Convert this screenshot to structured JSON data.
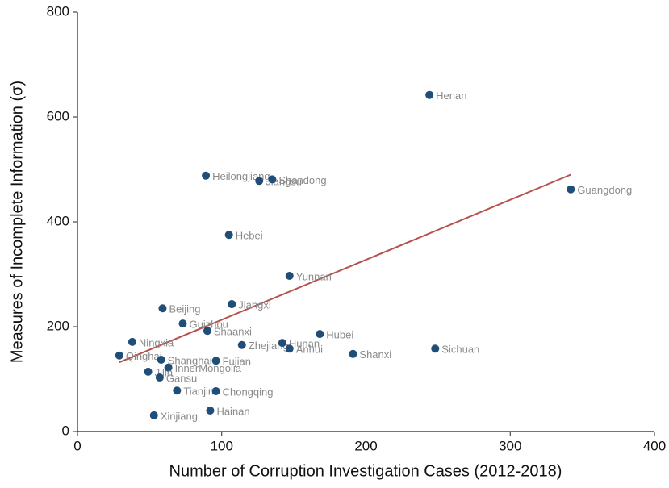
{
  "chart_data": {
    "type": "scatter",
    "xlabel": "Number of Corruption Investigation Cases (2012-2018)",
    "ylabel": "Measures of Incomplete Information (σ)",
    "xlim": [
      0,
      400
    ],
    "xticks": [
      0,
      100,
      200,
      300,
      400
    ],
    "ylim": [
      0,
      800
    ],
    "yticks": [
      0,
      200,
      400,
      600,
      800
    ],
    "color": "#1f4e79",
    "labels": [
      "Henan",
      "Guangdong",
      "Heilongjiang",
      "Jiangsu",
      "Shandong",
      "Hebei",
      "Yunnan",
      "Beijing",
      "Jiangxi",
      "Guizhou",
      "Shaanxi",
      "Ningxia",
      "Hubei",
      "Zhejiang",
      "Hunan",
      "Anhui",
      "Shanxi",
      "Sichuan",
      "Qinghai",
      "Shanghai",
      "Fujian",
      "InnerMongolia",
      "Jilin",
      "Gansu",
      "Tianjin",
      "Chongqing",
      "Hainan",
      "Xinjiang"
    ],
    "x": [
      244,
      342,
      89,
      126,
      135,
      105,
      147,
      59,
      107,
      73,
      90,
      38,
      168,
      114,
      142,
      147,
      191,
      248,
      29,
      58,
      96,
      63,
      49,
      57,
      69,
      96,
      92,
      53
    ],
    "y": [
      642,
      462,
      488,
      478,
      481,
      375,
      297,
      235,
      243,
      206,
      192,
      171,
      186,
      165,
      169,
      158,
      148,
      158,
      145,
      137,
      135,
      122,
      114,
      103,
      78,
      77,
      40,
      31
    ],
    "trend": {
      "color": "#b5524f",
      "x": [
        29,
        342
      ],
      "y": [
        132,
        490
      ]
    }
  }
}
